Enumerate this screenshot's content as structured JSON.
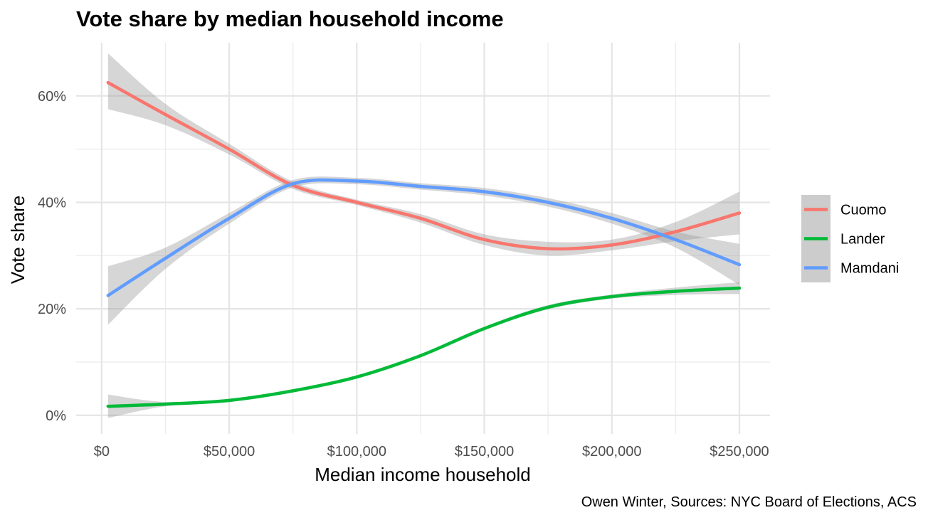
{
  "chart_data": {
    "type": "line",
    "title": "Vote share by median household income",
    "xlabel": "Median income household",
    "ylabel": "Vote share",
    "caption": "Owen Winter, Sources: NYC Board of Elections, ACS",
    "xlim": [
      -10000,
      262000
    ],
    "ylim": [
      -0.035,
      0.7
    ],
    "x_ticks": [
      0,
      50000,
      100000,
      150000,
      200000,
      250000
    ],
    "x_tick_labels": [
      "$0",
      "$50,000",
      "$100,000",
      "$150,000",
      "$200,000",
      "$250,000"
    ],
    "y_ticks": [
      0,
      0.2,
      0.4,
      0.6
    ],
    "y_tick_labels": [
      "0%",
      "20%",
      "40%",
      "60%"
    ],
    "grid": true,
    "legend_position": "right",
    "confidence_band": true,
    "series": [
      {
        "name": "Cuomo",
        "color": "#F8766D",
        "x": [
          2500,
          25000,
          50000,
          75000,
          100000,
          125000,
          150000,
          175000,
          200000,
          225000,
          250000
        ],
        "y": [
          0.625,
          0.565,
          0.5,
          0.432,
          0.4,
          0.37,
          0.33,
          0.313,
          0.32,
          0.345,
          0.38
        ],
        "lower": [
          0.575,
          0.545,
          0.49,
          0.425,
          0.395,
          0.362,
          0.32,
          0.3,
          0.31,
          0.327,
          0.34
        ],
        "upper": [
          0.68,
          0.585,
          0.51,
          0.439,
          0.405,
          0.378,
          0.34,
          0.326,
          0.33,
          0.363,
          0.42
        ]
      },
      {
        "name": "Lander",
        "color": "#00BA38",
        "x": [
          2500,
          25000,
          50000,
          75000,
          100000,
          125000,
          150000,
          175000,
          200000,
          225000,
          250000
        ],
        "y": [
          0.017,
          0.021,
          0.028,
          0.046,
          0.072,
          0.112,
          0.163,
          0.203,
          0.223,
          0.233,
          0.239
        ],
        "lower": [
          -0.005,
          0.017,
          0.025,
          0.043,
          0.069,
          0.109,
          0.16,
          0.199,
          0.219,
          0.226,
          0.228
        ],
        "upper": [
          0.039,
          0.025,
          0.031,
          0.049,
          0.075,
          0.115,
          0.166,
          0.207,
          0.227,
          0.24,
          0.25
        ]
      },
      {
        "name": "Mamdani",
        "color": "#619CFF",
        "x": [
          2500,
          25000,
          50000,
          75000,
          100000,
          125000,
          150000,
          175000,
          200000,
          225000,
          250000
        ],
        "y": [
          0.225,
          0.295,
          0.37,
          0.435,
          0.44,
          0.43,
          0.42,
          0.4,
          0.37,
          0.33,
          0.283
        ],
        "lower": [
          0.17,
          0.275,
          0.36,
          0.428,
          0.434,
          0.424,
          0.413,
          0.392,
          0.36,
          0.315,
          0.245
        ],
        "upper": [
          0.28,
          0.315,
          0.38,
          0.442,
          0.446,
          0.436,
          0.427,
          0.408,
          0.38,
          0.345,
          0.322
        ]
      }
    ]
  }
}
